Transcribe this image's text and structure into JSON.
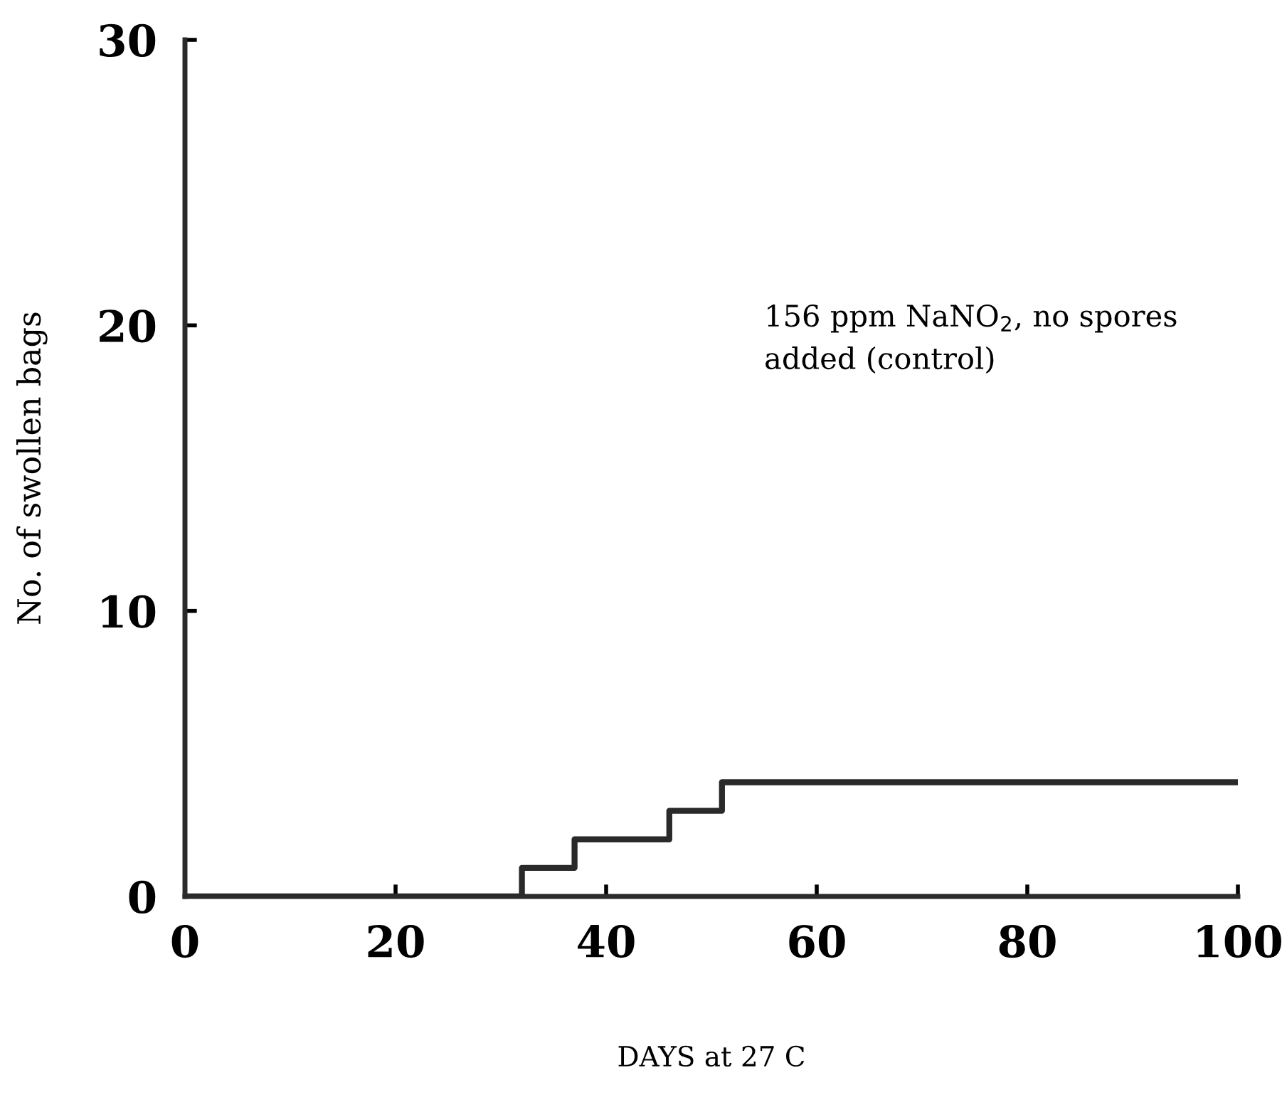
{
  "chart_data": {
    "type": "step",
    "xlabel": "DAYS at 27 C",
    "ylabel": "No. of swollen bags",
    "x": [
      0,
      32,
      37,
      46,
      51,
      100
    ],
    "series": [
      {
        "color": "#2a2a2a",
        "values": [
          0,
          1,
          2,
          3,
          4,
          4
        ]
      }
    ],
    "xlim": [
      0,
      100
    ],
    "xticks": [
      {
        "value": 0,
        "label": "0"
      },
      20,
      40,
      60,
      80,
      100
    ],
    "ylim": [
      0,
      30
    ],
    "yticks": [
      {
        "value": 0,
        "label": "0"
      },
      10,
      20,
      30
    ],
    "annotations": [
      "156 ppm NaNO$_{2}$, no spores\nadded (control)"
    ],
    "grid": false,
    "legend": false
  }
}
